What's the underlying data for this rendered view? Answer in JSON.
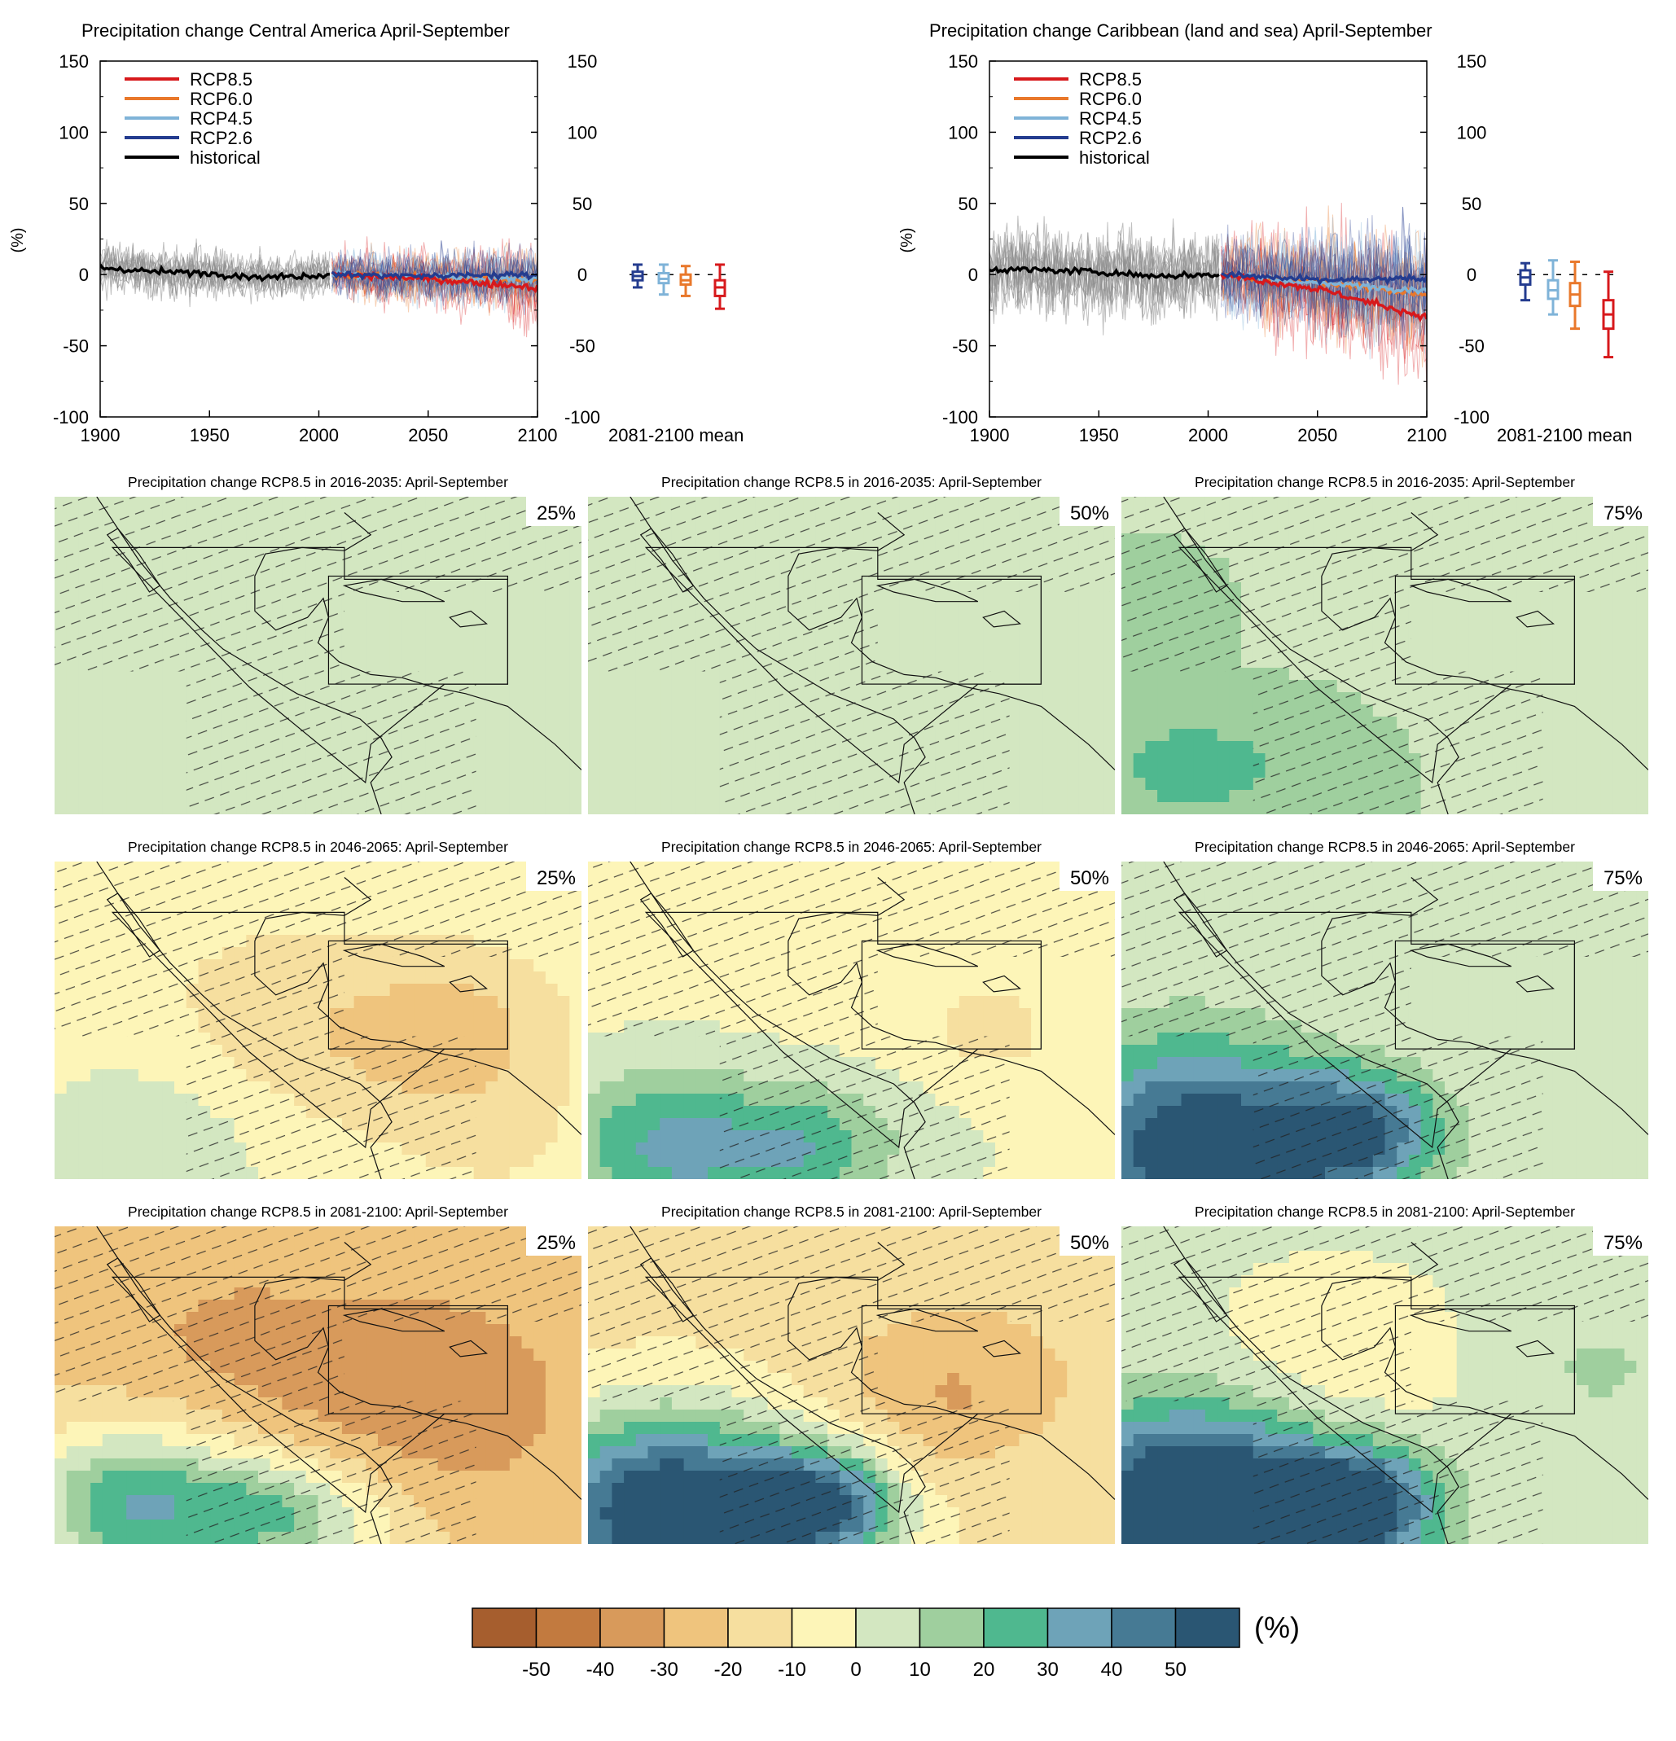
{
  "colors": {
    "rcp85": "#d7191c",
    "rcp60": "#e9782b",
    "rcp45": "#7fb3d8",
    "rcp26": "#243c8f",
    "historical": "#000000",
    "model_spread": "#8c8c8c"
  },
  "timeseries": [
    {
      "title": "Precipitation change Central America April-September",
      "ylabel": "(%)",
      "box_label": "2081-2100 mean",
      "legend": [
        "RCP8.5",
        "RCP6.0",
        "RCP4.5",
        "RCP2.6",
        "historical"
      ],
      "xticks": [
        "1900",
        "1950",
        "2000",
        "2050",
        "2100"
      ],
      "yticks": [
        "150",
        "100",
        "50",
        "0",
        "-50",
        "-100"
      ]
    },
    {
      "title": "Precipitation change Caribbean (land and sea) April-September",
      "ylabel": "(%)",
      "box_label": "2081-2100 mean",
      "legend": [
        "RCP8.5",
        "RCP6.0",
        "RCP4.5",
        "RCP2.6",
        "historical"
      ],
      "xticks": [
        "1900",
        "1950",
        "2000",
        "2050",
        "2100"
      ],
      "yticks": [
        "150",
        "100",
        "50",
        "0",
        "-50",
        "-100"
      ]
    }
  ],
  "maps": {
    "rows": [
      {
        "title": "Precipitation change RCP8.5 in 2016-2035: April-September",
        "percentiles": [
          "25%",
          "50%",
          "75%"
        ]
      },
      {
        "title": "Precipitation change RCP8.5 in 2046-2065: April-September",
        "percentiles": [
          "25%",
          "50%",
          "75%"
        ]
      },
      {
        "title": "Precipitation change RCP8.5 in 2081-2100: April-September",
        "percentiles": [
          "25%",
          "50%",
          "75%"
        ]
      }
    ]
  },
  "colorbar": {
    "unit": "(%)",
    "labels": [
      "-50",
      "-40",
      "-30",
      "-20",
      "-10",
      "0",
      "10",
      "20",
      "30",
      "40",
      "50"
    ],
    "colors": [
      "#a65e2e",
      "#c27a3f",
      "#d89a5b",
      "#efc47d",
      "#f6df9f",
      "#fdf5b8",
      "#d3e7c1",
      "#9fcf9e",
      "#4fb88f",
      "#6ea3b8",
      "#467a94",
      "#2a5673"
    ]
  },
  "chart_data": [
    {
      "type": "line",
      "title": "Precipitation change Central America April-September",
      "ylabel": "(%)",
      "xlim": [
        1900,
        2100
      ],
      "ylim": [
        -100,
        150
      ],
      "grid": false,
      "legend_position": "top-left",
      "series": [
        {
          "name": "historical",
          "x": [
            1900,
            1925,
            1950,
            1975,
            2005
          ],
          "values": [
            5,
            2,
            1,
            -2,
            0
          ]
        },
        {
          "name": "RCP2.6",
          "x": [
            2006,
            2050,
            2100
          ],
          "values": [
            0,
            -1,
            0
          ]
        },
        {
          "name": "RCP4.5",
          "x": [
            2006,
            2050,
            2100
          ],
          "values": [
            0,
            -2,
            -3
          ]
        },
        {
          "name": "RCP6.0",
          "x": [
            2006,
            2050,
            2100
          ],
          "values": [
            0,
            -2,
            -4
          ]
        },
        {
          "name": "RCP8.5",
          "x": [
            2006,
            2050,
            2100
          ],
          "values": [
            0,
            -3,
            -9
          ]
        }
      ],
      "boxplots_2081_2100_mean": [
        {
          "name": "RCP2.6",
          "min": -9,
          "q1": -4,
          "median": -1,
          "q3": 2,
          "max": 7
        },
        {
          "name": "RCP4.5",
          "min": -14,
          "q1": -6,
          "median": -3,
          "q3": 1,
          "max": 7
        },
        {
          "name": "RCP6.0",
          "min": -15,
          "q1": -7,
          "median": -4,
          "q3": 0,
          "max": 6
        },
        {
          "name": "RCP8.5",
          "min": -24,
          "q1": -15,
          "median": -9,
          "q3": -4,
          "max": 7
        }
      ]
    },
    {
      "type": "line",
      "title": "Precipitation change Caribbean (land and sea) April-September",
      "ylabel": "(%)",
      "xlim": [
        1900,
        2100
      ],
      "ylim": [
        -100,
        150
      ],
      "grid": false,
      "legend_position": "top-left",
      "series": [
        {
          "name": "historical",
          "x": [
            1900,
            1925,
            1950,
            1975,
            2005
          ],
          "values": [
            4,
            3,
            2,
            -1,
            0
          ]
        },
        {
          "name": "RCP2.6",
          "x": [
            2006,
            2050,
            2100
          ],
          "values": [
            0,
            -4,
            -3
          ]
        },
        {
          "name": "RCP4.5",
          "x": [
            2006,
            2050,
            2100
          ],
          "values": [
            0,
            -6,
            -11
          ]
        },
        {
          "name": "RCP6.0",
          "x": [
            2006,
            2050,
            2100
          ],
          "values": [
            0,
            -5,
            -14
          ]
        },
        {
          "name": "RCP8.5",
          "x": [
            2006,
            2050,
            2100
          ],
          "values": [
            0,
            -10,
            -30
          ]
        }
      ],
      "boxplots_2081_2100_mean": [
        {
          "name": "RCP2.6",
          "min": -18,
          "q1": -7,
          "median": -2,
          "q3": 3,
          "max": 8
        },
        {
          "name": "RCP4.5",
          "min": -28,
          "q1": -17,
          "median": -11,
          "q3": -4,
          "max": 10
        },
        {
          "name": "RCP6.0",
          "min": -38,
          "q1": -22,
          "median": -14,
          "q3": -6,
          "max": 9
        },
        {
          "name": "RCP8.5",
          "min": -58,
          "q1": -38,
          "median": -28,
          "q3": -18,
          "max": 2
        }
      ]
    }
  ]
}
